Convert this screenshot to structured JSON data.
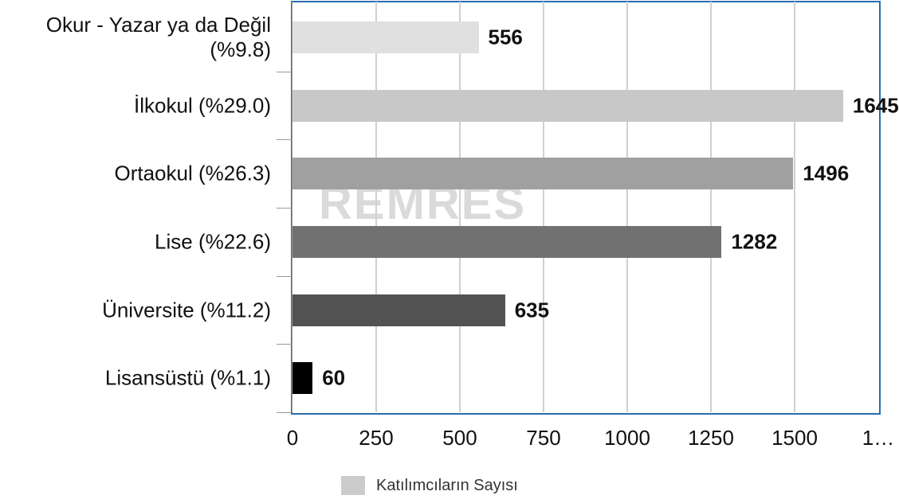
{
  "watermark": "REMRES",
  "chart_data": {
    "type": "bar",
    "orientation": "horizontal",
    "categories": [
      "Okur - Yazar ya da Değil (%9.8)",
      "İlkokul (%29.0)",
      "Ortaokul (%26.3)",
      "Lise (%22.6)",
      "Üniversite (%11.2)",
      "Lisansüstü (%1.1)"
    ],
    "series": [
      {
        "name": "Katılımcıların Sayısı",
        "color": "#cccccc",
        "colors": [
          "#e0e0e0",
          "#c8c8c8",
          "#a0a0a0",
          "#717171",
          "#525252",
          "#000000"
        ],
        "values": [
          556,
          1645,
          1496,
          1282,
          635,
          60
        ]
      }
    ],
    "xlim": [
      0,
      1750
    ],
    "xticks": [
      0,
      250,
      500,
      750,
      1000,
      1250,
      1500,
      {
        "value": 1750,
        "label": "1…"
      }
    ],
    "grid": true
  }
}
